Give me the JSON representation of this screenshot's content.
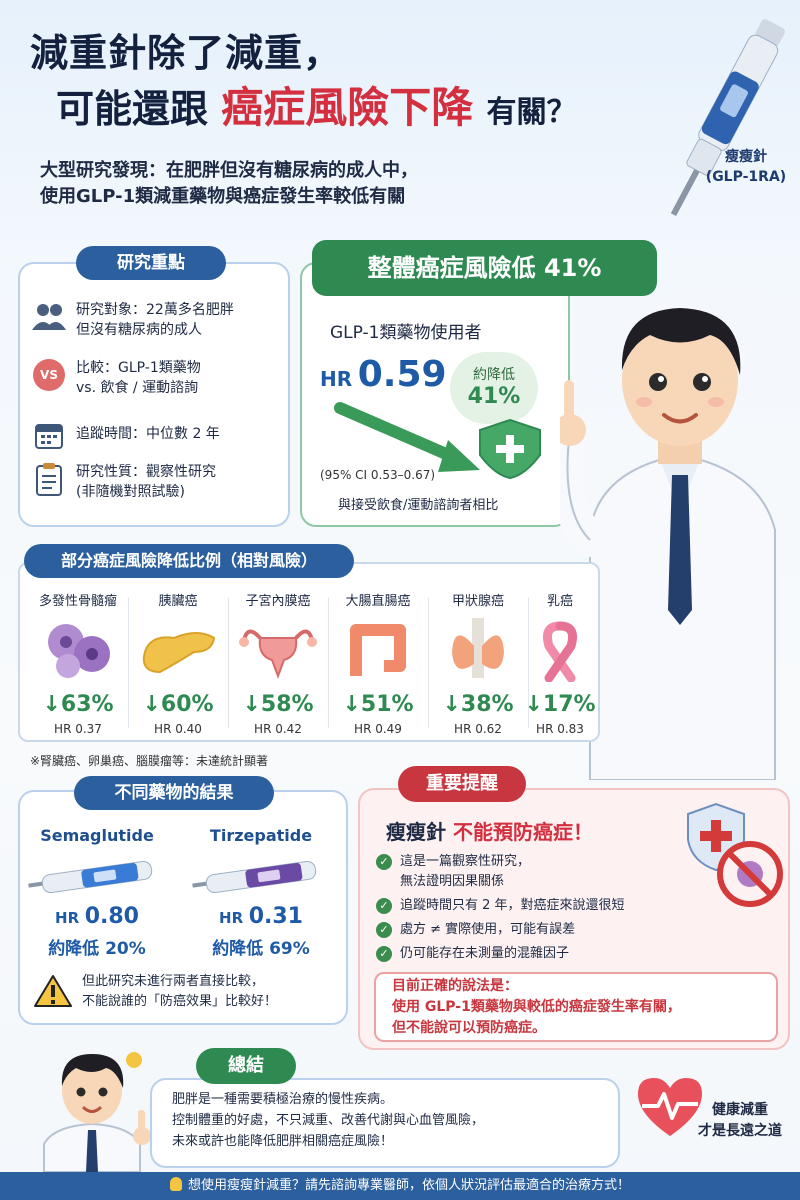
{
  "header": {
    "line1": "減重針除了減重，",
    "line2_prefix": "可能還跟",
    "line2_highlight": "癌症風險下降",
    "line2_suffix": "有關？",
    "subtitle_1": "大型研究發現：在肥胖但沒有糖尿病的成人中，",
    "subtitle_2": "使用GLP-1類減重藥物與癌症發生率較低有關"
  },
  "pen_label": {
    "line1": "瘦瘦針",
    "line2": "(GLP-1RA)"
  },
  "key_points": {
    "title": "研究重點",
    "items": [
      {
        "icon": "people-icon",
        "line1": "研究對象：22萬多名肥胖",
        "line2": "但沒有糖尿病的成人"
      },
      {
        "icon": "vs-icon",
        "icon_text": "VS",
        "line1": "比較：GLP-1類藥物",
        "line2": "vs. 飲食 / 運動諮詢"
      },
      {
        "icon": "calendar-icon",
        "line1": "追蹤時間：中位數 2 年",
        "line2": ""
      },
      {
        "icon": "clipboard-icon",
        "line1": "研究性質：觀察性研究",
        "line2": "(非隨機對照試驗)"
      }
    ]
  },
  "overall": {
    "title": "整體癌症風險低 41%",
    "user_label": "GLP-1類藥物使用者",
    "hr_label": "HR",
    "hr_value": "0.59",
    "reduce_label": "約降低",
    "reduce_value": "41%",
    "ci": "(95% CI 0.53–0.67)",
    "compare": "與接受飲食/運動諮詢者相比"
  },
  "cancers": {
    "title": "部分癌症風險降低比例（相對風險）",
    "items": [
      {
        "name": "多發性骨髓瘤",
        "pct": "↓63%",
        "hr": "HR 0.37"
      },
      {
        "name": "胰臟癌",
        "pct": "↓60%",
        "hr": "HR 0.40"
      },
      {
        "name": "子宮內膜癌",
        "pct": "↓58%",
        "hr": "HR 0.42"
      },
      {
        "name": "大腸直腸癌",
        "pct": "↓51%",
        "hr": "HR 0.49"
      },
      {
        "name": "甲狀腺癌",
        "pct": "↓38%",
        "hr": "HR 0.62"
      },
      {
        "name": "乳癌",
        "pct": "↓17%",
        "hr": "HR 0.83"
      }
    ],
    "note": "※腎臟癌、卵巢癌、腦膜瘤等：未達統計顯著"
  },
  "drugs": {
    "title": "不同藥物的結果",
    "items": [
      {
        "name": "Semaglutide",
        "hr_label": "HR",
        "hr_value": "0.80",
        "reduce": "約降低 20%",
        "color": "#3a7bd5"
      },
      {
        "name": "Tirzepatide",
        "hr_label": "HR",
        "hr_value": "0.31",
        "reduce": "約降低 69%",
        "color": "#6b4aa6"
      }
    ],
    "warning_1": "但此研究未進行兩者直接比較，",
    "warning_2": "不能說誰的「防癌效果」比較好！"
  },
  "reminder": {
    "title": "重要提醒",
    "head_prefix": "瘦瘦針",
    "head_highlight": "不能預防癌症！",
    "items": [
      {
        "line1": "這是一篇觀察性研究，",
        "line2": "無法證明因果關係"
      },
      {
        "line1": "追蹤時間只有 2 年，對癌症來說還很短",
        "line2": ""
      },
      {
        "line1": "處方 ≠ 實際使用，可能有誤差",
        "line2": ""
      },
      {
        "line1": "仍可能存在未測量的混雜因子",
        "line2": ""
      }
    ],
    "correct_1": "目前正確的說法是：",
    "correct_2": "使用 GLP-1類藥物與較低的癌症發生率有關，",
    "correct_3": "但不能說可以預防癌症。"
  },
  "summary": {
    "title": "總結",
    "line1": "肥胖是一種需要積極治療的慢性疾病。",
    "line2": "控制體重的好處，不只減重、改善代謝與心血管風險，",
    "line3": "未來或許也能降低肥胖相關癌症風險！"
  },
  "slogan": {
    "line1": "健康減重",
    "line2": "才是長遠之道"
  },
  "footer": "想使用瘦瘦針減重？請先諮詢專業醫師，依個人狀況評估最適合的治療方式！"
}
